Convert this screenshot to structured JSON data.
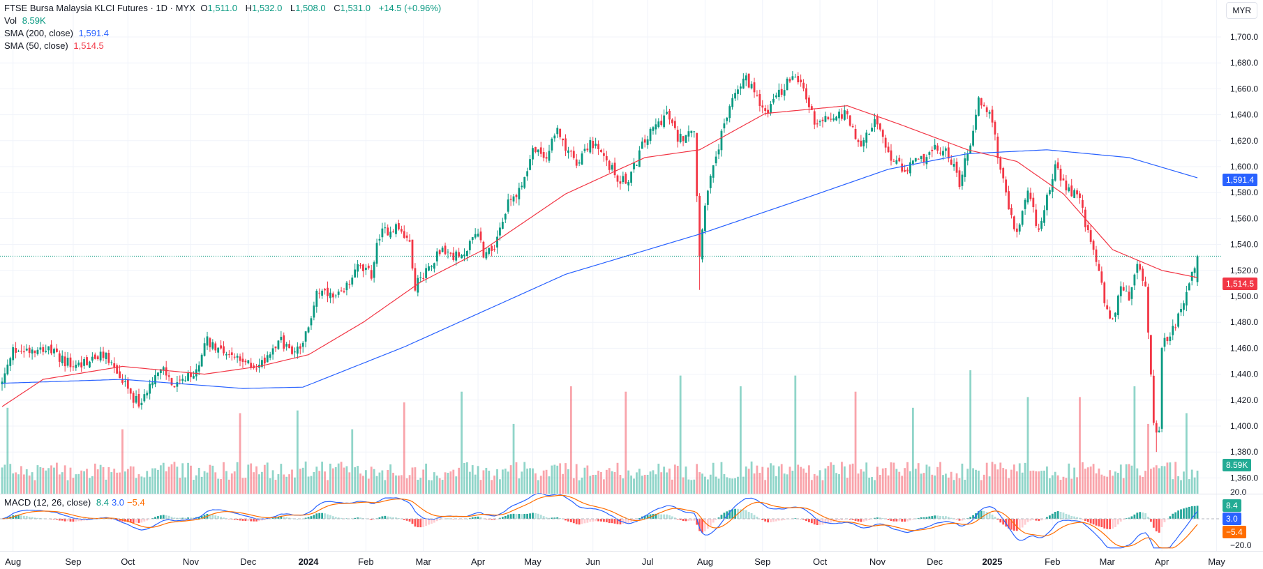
{
  "legend": {
    "title": "FTSE Bursa Malaysia KLCI Futures · 1D · MYX",
    "o_label": "O",
    "o": "1,511.0",
    "h_label": "H",
    "h": "1,532.0",
    "l_label": "L",
    "l": "1,508.0",
    "c_label": "C",
    "c": "1,531.0",
    "change": "+14.5 (+0.96%)",
    "vol_label": "Vol",
    "vol": "8.59K",
    "sma200_label": "SMA (200, close)",
    "sma200": "1,591.4",
    "sma50_label": "SMA (50, close)",
    "sma50": "1,514.5",
    "macd_label": "MACD (12, 26, close)",
    "macd_hist": "8.4",
    "macd_line": "3.0",
    "macd_signal": "−5.4"
  },
  "currency_button": "MYR",
  "price_axis": [
    "1,700.0",
    "1,680.0",
    "1,660.0",
    "1,640.0",
    "1,620.0",
    "1,600.0",
    "1,580.0",
    "1,560.0",
    "1,540.0",
    "1,520.0",
    "1,500.0",
    "1,480.0",
    "1,460.0",
    "1,440.0",
    "1,420.0",
    "1,400.0",
    "1,380.0",
    "1,360.0"
  ],
  "macd_axis": [
    "20.0",
    "−20.0"
  ],
  "badges": {
    "sma200": "1,591.4",
    "sma50": "1,514.5",
    "vol": "8.59K",
    "hist": "8.4",
    "macd": "3.0",
    "signal": "−5.4"
  },
  "colors": {
    "up": "#089981",
    "down": "#f23645",
    "sma200": "#2962ff",
    "sma50": "#f23645",
    "macd": "#2962ff",
    "signal": "#ff6d00"
  },
  "chart_data": {
    "type": "candlestick",
    "bars": 438,
    "last_bar": {
      "open": 1511.0,
      "high": 1532.0,
      "low": 1508.0,
      "close": 1531.0,
      "volume_k": 8.59
    },
    "close_anchors": [
      [
        0,
        1433
      ],
      [
        4,
        1458
      ],
      [
        15,
        1461
      ],
      [
        26,
        1446
      ],
      [
        38,
        1455
      ],
      [
        47,
        1424
      ],
      [
        51,
        1415
      ],
      [
        54,
        1436
      ],
      [
        59,
        1443
      ],
      [
        63,
        1430
      ],
      [
        71,
        1441
      ],
      [
        74,
        1467
      ],
      [
        79,
        1461
      ],
      [
        88,
        1449
      ],
      [
        94,
        1446
      ],
      [
        101,
        1467
      ],
      [
        107,
        1455
      ],
      [
        112,
        1474
      ],
      [
        115,
        1505
      ],
      [
        121,
        1498
      ],
      [
        125,
        1502
      ],
      [
        129,
        1523
      ],
      [
        135,
        1517
      ],
      [
        138,
        1548
      ],
      [
        144,
        1554
      ],
      [
        149,
        1542
      ],
      [
        151,
        1508
      ],
      [
        156,
        1523
      ],
      [
        160,
        1536
      ],
      [
        168,
        1529
      ],
      [
        174,
        1551
      ],
      [
        176,
        1533
      ],
      [
        181,
        1542
      ],
      [
        185,
        1573
      ],
      [
        190,
        1585
      ],
      [
        194,
        1613
      ],
      [
        199,
        1607
      ],
      [
        203,
        1629
      ],
      [
        206,
        1616
      ],
      [
        210,
        1604
      ],
      [
        215,
        1619
      ],
      [
        221,
        1604
      ],
      [
        225,
        1591
      ],
      [
        229,
        1588
      ],
      [
        234,
        1616
      ],
      [
        238,
        1629
      ],
      [
        243,
        1641
      ],
      [
        247,
        1622
      ],
      [
        253,
        1626
      ],
      [
        255,
        1529
      ],
      [
        257,
        1573
      ],
      [
        262,
        1616
      ],
      [
        266,
        1647
      ],
      [
        271,
        1669
      ],
      [
        275,
        1660
      ],
      [
        279,
        1641
      ],
      [
        284,
        1656
      ],
      [
        288,
        1669
      ],
      [
        293,
        1660
      ],
      [
        297,
        1635
      ],
      [
        303,
        1638
      ],
      [
        309,
        1641
      ],
      [
        313,
        1616
      ],
      [
        319,
        1635
      ],
      [
        324,
        1610
      ],
      [
        329,
        1598
      ],
      [
        335,
        1604
      ],
      [
        341,
        1613
      ],
      [
        346,
        1610
      ],
      [
        350,
        1588
      ],
      [
        354,
        1619
      ],
      [
        357,
        1653
      ],
      [
        362,
        1635
      ],
      [
        365,
        1598
      ],
      [
        368,
        1567
      ],
      [
        371,
        1548
      ],
      [
        375,
        1579
      ],
      [
        379,
        1551
      ],
      [
        382,
        1579
      ],
      [
        385,
        1598
      ],
      [
        390,
        1582
      ],
      [
        394,
        1576
      ],
      [
        397,
        1548
      ],
      [
        400,
        1529
      ],
      [
        403,
        1498
      ],
      [
        406,
        1480
      ],
      [
        409,
        1508
      ],
      [
        412,
        1498
      ],
      [
        415,
        1523
      ],
      [
        418,
        1511
      ],
      [
        419,
        1474
      ],
      [
        421,
        1405
      ],
      [
        423,
        1393
      ],
      [
        424,
        1461
      ],
      [
        426,
        1467
      ],
      [
        429,
        1480
      ],
      [
        432,
        1498
      ],
      [
        435,
        1517
      ],
      [
        437,
        1531
      ]
    ],
    "sma200_anchors": [
      [
        0,
        1433
      ],
      [
        44,
        1436
      ],
      [
        88,
        1429
      ],
      [
        110,
        1430
      ],
      [
        147,
        1461
      ],
      [
        206,
        1517
      ],
      [
        255,
        1548
      ],
      [
        294,
        1576
      ],
      [
        324,
        1598
      ],
      [
        353,
        1610
      ],
      [
        382,
        1613
      ],
      [
        412,
        1607
      ],
      [
        437,
        1591.4
      ]
    ],
    "sma50_anchors": [
      [
        0,
        1415
      ],
      [
        15,
        1436
      ],
      [
        44,
        1446
      ],
      [
        74,
        1440
      ],
      [
        94,
        1446
      ],
      [
        112,
        1455
      ],
      [
        132,
        1480
      ],
      [
        153,
        1511
      ],
      [
        176,
        1536
      ],
      [
        206,
        1579
      ],
      [
        235,
        1607
      ],
      [
        255,
        1613
      ],
      [
        279,
        1641
      ],
      [
        309,
        1647
      ],
      [
        329,
        1632
      ],
      [
        353,
        1613
      ],
      [
        371,
        1604
      ],
      [
        388,
        1579
      ],
      [
        406,
        1536
      ],
      [
        424,
        1520
      ],
      [
        437,
        1514.5
      ]
    ],
    "volume_spikes_k": [
      [
        2,
        32
      ],
      [
        44,
        24
      ],
      [
        87,
        30
      ],
      [
        108,
        31
      ],
      [
        128,
        24
      ],
      [
        147,
        34
      ],
      [
        168,
        38
      ],
      [
        187,
        26
      ],
      [
        208,
        40
      ],
      [
        228,
        38
      ],
      [
        248,
        44
      ],
      [
        270,
        40
      ],
      [
        290,
        44
      ],
      [
        312,
        38
      ],
      [
        333,
        32
      ],
      [
        354,
        46
      ],
      [
        375,
        36
      ],
      [
        394,
        36
      ],
      [
        414,
        40
      ],
      [
        419,
        26
      ],
      [
        433,
        30
      ]
    ],
    "price_range": [
      1350,
      1710
    ],
    "macd_range": [
      -26,
      26
    ],
    "time_labels": [
      [
        4,
        "Aug"
      ],
      [
        26,
        "Sep"
      ],
      [
        46,
        "Oct"
      ],
      [
        69,
        "Nov"
      ],
      [
        90,
        "Dec"
      ],
      [
        112,
        "2024"
      ],
      [
        133,
        "Feb"
      ],
      [
        154,
        "Mar"
      ],
      [
        174,
        "Apr"
      ],
      [
        194,
        "May"
      ],
      [
        216,
        "Jun"
      ],
      [
        236,
        "Jul"
      ],
      [
        257,
        "Aug"
      ],
      [
        278,
        "Sep"
      ],
      [
        299,
        "Oct"
      ],
      [
        320,
        "Nov"
      ],
      [
        341,
        "Dec"
      ],
      [
        362,
        "2025"
      ],
      [
        384,
        "Feb"
      ],
      [
        404,
        "Mar"
      ],
      [
        424,
        "Apr"
      ],
      [
        444,
        "May"
      ]
    ]
  }
}
